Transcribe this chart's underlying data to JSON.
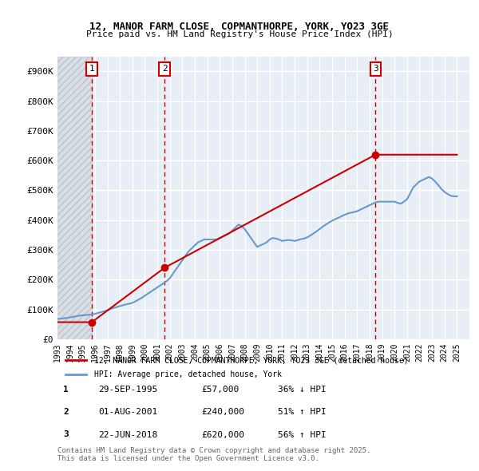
{
  "title_line1": "12, MANOR FARM CLOSE, COPMANTHORPE, YORK, YO23 3GE",
  "title_line2": "Price paid vs. HM Land Registry's House Price Index (HPI)",
  "sales": [
    {
      "label": "1",
      "date": 1995.75,
      "price": 57000,
      "hpi_pct": "36% ↓ HPI"
    },
    {
      "label": "2",
      "date": 2001.58,
      "price": 240000,
      "hpi_pct": "51% ↑ HPI"
    },
    {
      "label": "3",
      "date": 2018.47,
      "price": 620000,
      "hpi_pct": "56% ↑ HPI"
    }
  ],
  "sale_dates_str": [
    "29-SEP-1995",
    "01-AUG-2001",
    "22-JUN-2018"
  ],
  "sale_prices_str": [
    "£57,000",
    "£240,000",
    "£620,000"
  ],
  "ylim": [
    0,
    950000
  ],
  "yticks": [
    0,
    100000,
    200000,
    300000,
    400000,
    500000,
    600000,
    700000,
    800000,
    900000
  ],
  "ytick_labels": [
    "£0",
    "£100K",
    "£200K",
    "£300K",
    "£400K",
    "£500K",
    "£600K",
    "£700K",
    "£800K",
    "£900K"
  ],
  "xlim": [
    1993,
    2026
  ],
  "xticks": [
    1993,
    1994,
    1995,
    1996,
    1997,
    1998,
    1999,
    2000,
    2001,
    2002,
    2003,
    2004,
    2005,
    2006,
    2007,
    2008,
    2009,
    2010,
    2011,
    2012,
    2013,
    2014,
    2015,
    2016,
    2017,
    2018,
    2019,
    2020,
    2021,
    2022,
    2023,
    2024,
    2025
  ],
  "price_line_color": "#cc0000",
  "hpi_line_color": "#6699cc",
  "hatch_color": "#cccccc",
  "bg_color": "#e8eef5",
  "grid_color": "#ffffff",
  "legend_label_price": "12, MANOR FARM CLOSE, COPMANTHORPE, YORK, YO23 3GE (detached house)",
  "legend_label_hpi": "HPI: Average price, detached house, York",
  "footer": "Contains HM Land Registry data © Crown copyright and database right 2025.\nThis data is licensed under the Open Government Licence v3.0.",
  "hpi_data_x": [
    1993.0,
    1993.25,
    1993.5,
    1993.75,
    1994.0,
    1994.25,
    1994.5,
    1994.75,
    1995.0,
    1995.25,
    1995.5,
    1995.75,
    1996.0,
    1996.25,
    1996.5,
    1996.75,
    1997.0,
    1997.25,
    1997.5,
    1997.75,
    1998.0,
    1998.25,
    1998.5,
    1998.75,
    1999.0,
    1999.25,
    1999.5,
    1999.75,
    2000.0,
    2000.25,
    2000.5,
    2000.75,
    2001.0,
    2001.25,
    2001.5,
    2001.75,
    2002.0,
    2002.25,
    2002.5,
    2002.75,
    2003.0,
    2003.25,
    2003.5,
    2003.75,
    2004.0,
    2004.25,
    2004.5,
    2004.75,
    2005.0,
    2005.25,
    2005.5,
    2005.75,
    2006.0,
    2006.25,
    2006.5,
    2006.75,
    2007.0,
    2007.25,
    2007.5,
    2007.75,
    2008.0,
    2008.25,
    2008.5,
    2008.75,
    2009.0,
    2009.25,
    2009.5,
    2009.75,
    2010.0,
    2010.25,
    2010.5,
    2010.75,
    2011.0,
    2011.25,
    2011.5,
    2011.75,
    2012.0,
    2012.25,
    2012.5,
    2012.75,
    2013.0,
    2013.25,
    2013.5,
    2013.75,
    2014.0,
    2014.25,
    2014.5,
    2014.75,
    2015.0,
    2015.25,
    2015.5,
    2015.75,
    2016.0,
    2016.25,
    2016.5,
    2016.75,
    2017.0,
    2017.25,
    2017.5,
    2017.75,
    2018.0,
    2018.25,
    2018.5,
    2018.75,
    2019.0,
    2019.25,
    2019.5,
    2019.75,
    2020.0,
    2020.25,
    2020.5,
    2020.75,
    2021.0,
    2021.25,
    2021.5,
    2021.75,
    2022.0,
    2022.25,
    2022.5,
    2022.75,
    2023.0,
    2023.25,
    2023.5,
    2023.75,
    2024.0,
    2024.25,
    2024.5,
    2024.75,
    2025.0
  ],
  "hpi_data_y": [
    68000,
    69000,
    70000,
    71000,
    73000,
    75000,
    77000,
    79000,
    80000,
    81000,
    82000,
    83000,
    85000,
    88000,
    91000,
    94000,
    97000,
    101000,
    105000,
    108000,
    111000,
    114000,
    117000,
    119000,
    122000,
    127000,
    133000,
    139000,
    146000,
    153000,
    160000,
    167000,
    174000,
    181000,
    188000,
    195000,
    205000,
    220000,
    235000,
    250000,
    265000,
    280000,
    295000,
    305000,
    315000,
    325000,
    330000,
    335000,
    335000,
    335000,
    335000,
    335000,
    340000,
    345000,
    350000,
    355000,
    365000,
    375000,
    385000,
    380000,
    370000,
    355000,
    340000,
    325000,
    310000,
    315000,
    320000,
    325000,
    335000,
    340000,
    338000,
    335000,
    330000,
    332000,
    333000,
    332000,
    330000,
    333000,
    336000,
    338000,
    342000,
    348000,
    355000,
    362000,
    370000,
    378000,
    385000,
    392000,
    398000,
    403000,
    408000,
    413000,
    418000,
    422000,
    425000,
    427000,
    430000,
    435000,
    440000,
    445000,
    450000,
    455000,
    460000,
    462000,
    462000,
    462000,
    462000,
    462000,
    462000,
    458000,
    455000,
    462000,
    470000,
    490000,
    510000,
    520000,
    530000,
    535000,
    540000,
    545000,
    540000,
    530000,
    518000,
    505000,
    495000,
    488000,
    482000,
    480000,
    480000
  ],
  "price_line_x": [
    1993.0,
    1995.75,
    1995.75,
    2001.58,
    2001.58,
    2018.47,
    2018.47,
    2025.0
  ],
  "price_line_y": [
    57000,
    57000,
    57000,
    240000,
    240000,
    620000,
    620000,
    620000
  ]
}
